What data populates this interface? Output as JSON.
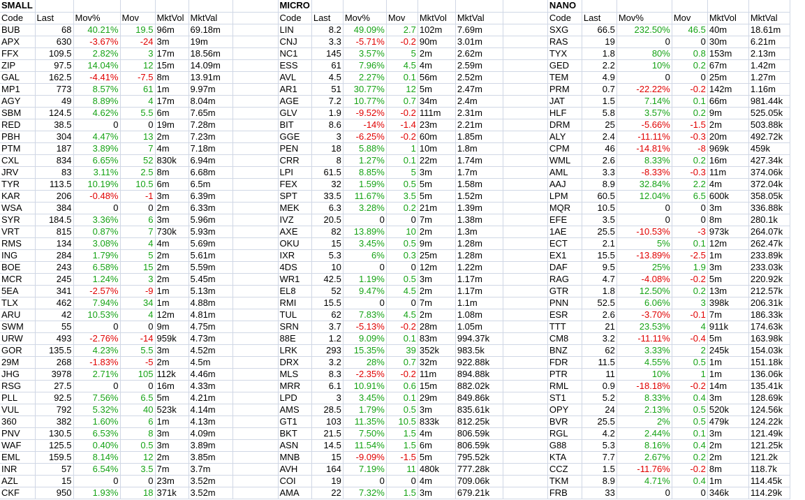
{
  "columns": [
    "Code",
    "Last",
    "Mov%",
    "Mov",
    "MktVol",
    "MktVal"
  ],
  "colors": {
    "positive": "#16a316",
    "negative": "#e00000",
    "grid": "#d0d7e5"
  },
  "sections": [
    {
      "title": "SMALL",
      "rows": [
        [
          "BUB",
          "68",
          "40.21%",
          "19.5",
          "96m",
          "69.18m"
        ],
        [
          "APX",
          "630",
          "-3.67%",
          "-24",
          "3m",
          "19m"
        ],
        [
          "FFX",
          "109.5",
          "2.82%",
          "3",
          "17m",
          "18.56m"
        ],
        [
          "ZIP",
          "97.5",
          "14.04%",
          "12",
          "15m",
          "14.09m"
        ],
        [
          "GAL",
          "162.5",
          "-4.41%",
          "-7.5",
          "8m",
          "13.91m"
        ],
        [
          "MP1",
          "773",
          "8.57%",
          "61",
          "1m",
          "9.97m"
        ],
        [
          "AGY",
          "49",
          "8.89%",
          "4",
          "17m",
          "8.04m"
        ],
        [
          "SBM",
          "124.5",
          "4.62%",
          "5.5",
          "6m",
          "7.65m"
        ],
        [
          "RED",
          "38.5",
          "0",
          "0",
          "19m",
          "7.28m"
        ],
        [
          "PBH",
          "304",
          "4.47%",
          "13",
          "2m",
          "7.23m"
        ],
        [
          "PTM",
          "187",
          "3.89%",
          "7",
          "4m",
          "7.18m"
        ],
        [
          "CXL",
          "834",
          "6.65%",
          "52",
          "830k",
          "6.94m"
        ],
        [
          "JRV",
          "83",
          "3.11%",
          "2.5",
          "8m",
          "6.68m"
        ],
        [
          "TYR",
          "113.5",
          "10.19%",
          "10.5",
          "6m",
          "6.5m"
        ],
        [
          "KAR",
          "206",
          "-0.48%",
          "-1",
          "3m",
          "6.39m"
        ],
        [
          "WSA",
          "384",
          "0",
          "0",
          "2m",
          "6.33m"
        ],
        [
          "SYR",
          "184.5",
          "3.36%",
          "6",
          "3m",
          "5.96m"
        ],
        [
          "VRT",
          "815",
          "0.87%",
          "7",
          "730k",
          "5.93m"
        ],
        [
          "RMS",
          "134",
          "3.08%",
          "4",
          "4m",
          "5.69m"
        ],
        [
          "ING",
          "284",
          "1.79%",
          "5",
          "2m",
          "5.61m"
        ],
        [
          "BOE",
          "243",
          "6.58%",
          "15",
          "2m",
          "5.59m"
        ],
        [
          "MCR",
          "245",
          "1.24%",
          "3",
          "2m",
          "5.45m"
        ],
        [
          "5EA",
          "341",
          "-2.57%",
          "-9",
          "1m",
          "5.13m"
        ],
        [
          "TLX",
          "462",
          "7.94%",
          "34",
          "1m",
          "4.88m"
        ],
        [
          "ARU",
          "42",
          "10.53%",
          "4",
          "12m",
          "4.81m"
        ],
        [
          "SWM",
          "55",
          "0",
          "0",
          "9m",
          "4.75m"
        ],
        [
          "URW",
          "493",
          "-2.76%",
          "-14",
          "959k",
          "4.73m"
        ],
        [
          "GOR",
          "135.5",
          "4.23%",
          "5.5",
          "3m",
          "4.52m"
        ],
        [
          "29M",
          "268",
          "-1.83%",
          "-5",
          "2m",
          "4.5m"
        ],
        [
          "JHG",
          "3978",
          "2.71%",
          "105",
          "112k",
          "4.46m"
        ],
        [
          "RSG",
          "27.5",
          "0",
          "0",
          "16m",
          "4.33m"
        ],
        [
          "PLL",
          "92.5",
          "7.56%",
          "6.5",
          "5m",
          "4.21m"
        ],
        [
          "VUL",
          "792",
          "5.32%",
          "40",
          "523k",
          "4.14m"
        ],
        [
          "360",
          "382",
          "1.60%",
          "6",
          "1m",
          "4.13m"
        ],
        [
          "PNV",
          "130.5",
          "6.53%",
          "8",
          "3m",
          "4.09m"
        ],
        [
          "WAF",
          "125.5",
          "0.40%",
          "0.5",
          "3m",
          "3.89m"
        ],
        [
          "EML",
          "159.5",
          "8.14%",
          "12",
          "2m",
          "3.85m"
        ],
        [
          "INR",
          "57",
          "6.54%",
          "3.5",
          "7m",
          "3.7m"
        ],
        [
          "AZL",
          "15",
          "0",
          "0",
          "23m",
          "3.52m"
        ],
        [
          "CKF",
          "950",
          "1.93%",
          "18",
          "371k",
          "3.52m"
        ]
      ]
    },
    {
      "title": "MICRO",
      "rows": [
        [
          "LIN",
          "8.2",
          "49.09%",
          "2.7",
          "102m",
          "7.69m"
        ],
        [
          "CNJ",
          "3.3",
          "-5.71%",
          "-0.2",
          "90m",
          "3.01m"
        ],
        [
          "NC1",
          "145",
          "3.57%",
          "5",
          "2m",
          "2.62m"
        ],
        [
          "ESS",
          "61",
          "7.96%",
          "4.5",
          "4m",
          "2.59m"
        ],
        [
          "AVL",
          "4.5",
          "2.27%",
          "0.1",
          "56m",
          "2.52m"
        ],
        [
          "AR1",
          "51",
          "30.77%",
          "12",
          "5m",
          "2.47m"
        ],
        [
          "AGE",
          "7.2",
          "10.77%",
          "0.7",
          "34m",
          "2.4m"
        ],
        [
          "GLV",
          "1.9",
          "-9.52%",
          "-0.2",
          "111m",
          "2.31m"
        ],
        [
          "BIT",
          "8.6",
          "-14%",
          "-1.4",
          "23m",
          "2.21m"
        ],
        [
          "GGE",
          "3",
          "-6.25%",
          "-0.2",
          "60m",
          "1.85m"
        ],
        [
          "PEN",
          "18",
          "5.88%",
          "1",
          "10m",
          "1.8m"
        ],
        [
          "CRR",
          "8",
          "1.27%",
          "0.1",
          "22m",
          "1.74m"
        ],
        [
          "LPI",
          "61.5",
          "8.85%",
          "5",
          "3m",
          "1.7m"
        ],
        [
          "FEX",
          "32",
          "1.59%",
          "0.5",
          "5m",
          "1.58m"
        ],
        [
          "SPT",
          "33.5",
          "11.67%",
          "3.5",
          "5m",
          "1.52m"
        ],
        [
          "MEK",
          "6.3",
          "3.28%",
          "0.2",
          "21m",
          "1.39m"
        ],
        [
          "IVZ",
          "20.5",
          "0",
          "0",
          "7m",
          "1.38m"
        ],
        [
          "AXE",
          "82",
          "13.89%",
          "10",
          "2m",
          "1.3m"
        ],
        [
          "OKU",
          "15",
          "3.45%",
          "0.5",
          "9m",
          "1.28m"
        ],
        [
          "IXR",
          "5.3",
          "6%",
          "0.3",
          "25m",
          "1.28m"
        ],
        [
          "4DS",
          "10",
          "0",
          "0",
          "12m",
          "1.22m"
        ],
        [
          "WR1",
          "42.5",
          "1.19%",
          "0.5",
          "3m",
          "1.17m"
        ],
        [
          "EL8",
          "52",
          "9.47%",
          "4.5",
          "2m",
          "1.17m"
        ],
        [
          "RMI",
          "15.5",
          "0",
          "0",
          "7m",
          "1.1m"
        ],
        [
          "TUL",
          "62",
          "7.83%",
          "4.5",
          "2m",
          "1.08m"
        ],
        [
          "SRN",
          "3.7",
          "-5.13%",
          "-0.2",
          "28m",
          "1.05m"
        ],
        [
          "88E",
          "1.2",
          "9.09%",
          "0.1",
          "83m",
          "994.37k"
        ],
        [
          "LRK",
          "293",
          "15.35%",
          "39",
          "352k",
          "983.5k"
        ],
        [
          "DRX",
          "3.2",
          "28%",
          "0.7",
          "32m",
          "922.88k"
        ],
        [
          "MLS",
          "8.3",
          "-2.35%",
          "-0.2",
          "11m",
          "894.88k"
        ],
        [
          "MRR",
          "6.1",
          "10.91%",
          "0.6",
          "15m",
          "882.02k"
        ],
        [
          "LPD",
          "3",
          "3.45%",
          "0.1",
          "29m",
          "849.86k"
        ],
        [
          "AMS",
          "28.5",
          "1.79%",
          "0.5",
          "3m",
          "835.61k"
        ],
        [
          "GT1",
          "103",
          "11.35%",
          "10.5",
          "833k",
          "812.25k"
        ],
        [
          "BKT",
          "21.5",
          "7.50%",
          "1.5",
          "4m",
          "806.59k"
        ],
        [
          "ASN",
          "14.5",
          "11.54%",
          "1.5",
          "6m",
          "806.59k"
        ],
        [
          "MNB",
          "15",
          "-9.09%",
          "-1.5",
          "5m",
          "795.52k"
        ],
        [
          "AVH",
          "164",
          "7.19%",
          "11",
          "480k",
          "777.28k"
        ],
        [
          "COI",
          "19",
          "0",
          "0",
          "4m",
          "709.06k"
        ],
        [
          "AMA",
          "22",
          "7.32%",
          "1.5",
          "3m",
          "679.21k"
        ]
      ]
    },
    {
      "title": "NANO",
      "rows": [
        [
          "SXG",
          "66.5",
          "232.50%",
          "46.5",
          "40m",
          "18.61m"
        ],
        [
          "RAS",
          "19",
          "0",
          "0",
          "30m",
          "6.21m"
        ],
        [
          "TYX",
          "1.8",
          "80%",
          "0.8",
          "153m",
          "2.13m"
        ],
        [
          "GED",
          "2.2",
          "10%",
          "0.2",
          "67m",
          "1.42m"
        ],
        [
          "TEM",
          "4.9",
          "0",
          "0",
          "25m",
          "1.27m"
        ],
        [
          "PRM",
          "0.7",
          "-22.22%",
          "-0.2",
          "142m",
          "1.16m"
        ],
        [
          "JAT",
          "1.5",
          "7.14%",
          "0.1",
          "66m",
          "981.44k"
        ],
        [
          "HLF",
          "5.8",
          "3.57%",
          "0.2",
          "9m",
          "525.05k"
        ],
        [
          "DRM",
          "25",
          "-5.66%",
          "-1.5",
          "2m",
          "503.88k"
        ],
        [
          "ALY",
          "2.4",
          "-11.11%",
          "-0.3",
          "20m",
          "492.72k"
        ],
        [
          "CPM",
          "46",
          "-14.81%",
          "-8",
          "969k",
          "459k"
        ],
        [
          "WML",
          "2.6",
          "8.33%",
          "0.2",
          "16m",
          "427.34k"
        ],
        [
          "AML",
          "3.3",
          "-8.33%",
          "-0.3",
          "11m",
          "374.06k"
        ],
        [
          "AAJ",
          "8.9",
          "32.84%",
          "2.2",
          "4m",
          "372.04k"
        ],
        [
          "LPM",
          "60.5",
          "12.04%",
          "6.5",
          "600k",
          "358.05k"
        ],
        [
          "MQR",
          "10.5",
          "0",
          "0",
          "3m",
          "336.88k"
        ],
        [
          "EFE",
          "3.5",
          "0",
          "0",
          "8m",
          "280.1k"
        ],
        [
          "1AE",
          "25.5",
          "-10.53%",
          "-3",
          "973k",
          "264.07k"
        ],
        [
          "ECT",
          "2.1",
          "5%",
          "0.1",
          "12m",
          "262.47k"
        ],
        [
          "EX1",
          "15.5",
          "-13.89%",
          "-2.5",
          "1m",
          "233.89k"
        ],
        [
          "DAF",
          "9.5",
          "25%",
          "1.9",
          "3m",
          "233.03k"
        ],
        [
          "RAG",
          "4.7",
          "-4.08%",
          "-0.2",
          "5m",
          "220.92k"
        ],
        [
          "GTR",
          "1.8",
          "12.50%",
          "0.2",
          "13m",
          "212.57k"
        ],
        [
          "PNN",
          "52.5",
          "6.06%",
          "3",
          "398k",
          "206.31k"
        ],
        [
          "ESR",
          "2.6",
          "-3.70%",
          "-0.1",
          "7m",
          "186.33k"
        ],
        [
          "TTT",
          "21",
          "23.53%",
          "4",
          "911k",
          "174.63k"
        ],
        [
          "CM8",
          "3.2",
          "-11.11%",
          "-0.4",
          "5m",
          "163.98k"
        ],
        [
          "BNZ",
          "62",
          "3.33%",
          "2",
          "245k",
          "154.03k"
        ],
        [
          "FDR",
          "11.5",
          "4.55%",
          "0.5",
          "1m",
          "151.18k"
        ],
        [
          "PTR",
          "11",
          "10%",
          "1",
          "1m",
          "136.06k"
        ],
        [
          "RML",
          "0.9",
          "-18.18%",
          "-0.2",
          "14m",
          "135.41k"
        ],
        [
          "ST1",
          "5.2",
          "8.33%",
          "0.4",
          "3m",
          "128.69k"
        ],
        [
          "OPY",
          "24",
          "2.13%",
          "0.5",
          "520k",
          "124.56k"
        ],
        [
          "BVR",
          "25.5",
          "2%",
          "0.5",
          "479k",
          "124.22k"
        ],
        [
          "RGL",
          "4.2",
          "2.44%",
          "0.1",
          "3m",
          "121.49k"
        ],
        [
          "G88",
          "5.3",
          "8.16%",
          "0.4",
          "2m",
          "121.25k"
        ],
        [
          "KTA",
          "7.7",
          "2.67%",
          "0.2",
          "2m",
          "121.2k"
        ],
        [
          "CCZ",
          "1.5",
          "-11.76%",
          "-0.2",
          "8m",
          "118.7k"
        ],
        [
          "TKM",
          "8.9",
          "4.71%",
          "0.4",
          "1m",
          "114.45k"
        ],
        [
          "FRB",
          "33",
          "0",
          "0",
          "346k",
          "114.29k"
        ]
      ]
    }
  ]
}
